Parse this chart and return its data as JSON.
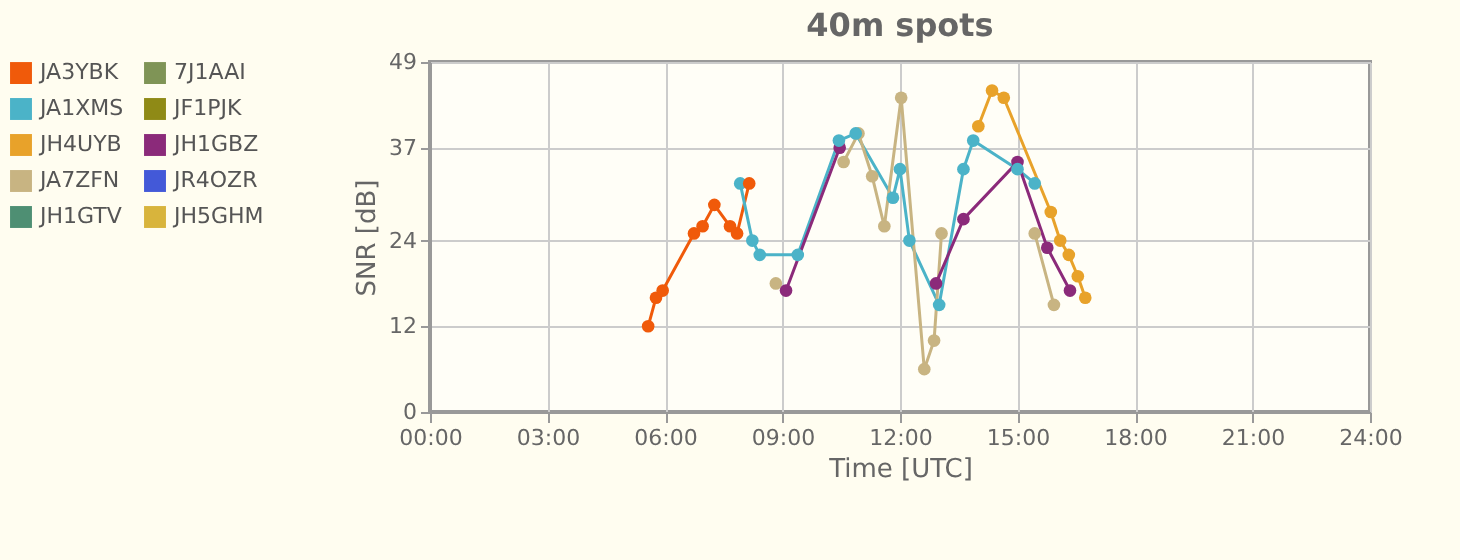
{
  "chart_data": {
    "type": "line",
    "title": "40m spots",
    "xlabel": "Time [UTC]",
    "ylabel": "SNR [dB]",
    "xlim": [
      0,
      24
    ],
    "ylim": [
      0,
      49
    ],
    "xticks": [
      {
        "value": 0,
        "label": "00:00"
      },
      {
        "value": 3,
        "label": "03:00"
      },
      {
        "value": 6,
        "label": "06:00"
      },
      {
        "value": 9,
        "label": "09:00"
      },
      {
        "value": 12,
        "label": "12:00"
      },
      {
        "value": 15,
        "label": "15:00"
      },
      {
        "value": 18,
        "label": "18:00"
      },
      {
        "value": 21,
        "label": "21:00"
      },
      {
        "value": 24,
        "label": "24:00"
      }
    ],
    "yticks": [
      0,
      12,
      24,
      37,
      49
    ],
    "grid": true,
    "legend": "left",
    "marker": "circle",
    "line_style": "solid",
    "series": [
      {
        "name": "JA3YBK",
        "color": "#f05a0a",
        "x": [
          5.57,
          5.77,
          5.94,
          6.74,
          6.96,
          7.26,
          7.66,
          7.84,
          8.15
        ],
        "values": [
          12,
          16,
          17,
          25,
          26,
          29,
          26,
          25,
          32
        ]
      },
      {
        "name": "JA1XMS",
        "color": "#4bb3c8",
        "x": [
          7.92,
          8.23,
          8.42,
          9.39,
          10.44,
          10.87,
          11.82,
          12.0,
          12.24,
          13.0,
          13.62,
          13.87,
          15.0,
          15.44
        ],
        "values": [
          32,
          24,
          22,
          22,
          38,
          39,
          30,
          34,
          24,
          15,
          34,
          38,
          34,
          32
        ]
      },
      {
        "name": "JH4UYB",
        "color": "#e8a22a",
        "x": [
          14.0,
          14.35,
          14.65,
          15.85,
          16.09,
          16.31,
          16.54,
          16.73
        ],
        "values": [
          40,
          45,
          44,
          28,
          24,
          22,
          19,
          16
        ]
      },
      {
        "name": "JA7ZFN",
        "color": "#c8b482",
        "x": [
          8.83,
          null,
          10.56,
          10.94,
          11.29,
          11.6,
          12.03,
          12.62,
          12.87,
          13.06,
          null,
          15.44,
          15.93
        ],
        "values": [
          18,
          null,
          35,
          39,
          33,
          26,
          44,
          6,
          10,
          25,
          null,
          25,
          15
        ]
      },
      {
        "name": "JH1GTV",
        "color": "#4e8f73"
      },
      {
        "name": "7J1AAI",
        "color": "#7f9456"
      },
      {
        "name": "JF1PJK",
        "color": "#8f8a16"
      },
      {
        "name": "JH1GBZ",
        "color": "#8b2a7a",
        "x": [
          9.09,
          10.46,
          null,
          12.92,
          13.62,
          15.0,
          15.76,
          16.34
        ],
        "values": [
          17,
          37,
          null,
          18,
          27,
          35,
          23,
          17
        ]
      },
      {
        "name": "JR4OZR",
        "color": "#4359d8"
      },
      {
        "name": "JH5GHM",
        "color": "#d8b43c"
      }
    ]
  }
}
